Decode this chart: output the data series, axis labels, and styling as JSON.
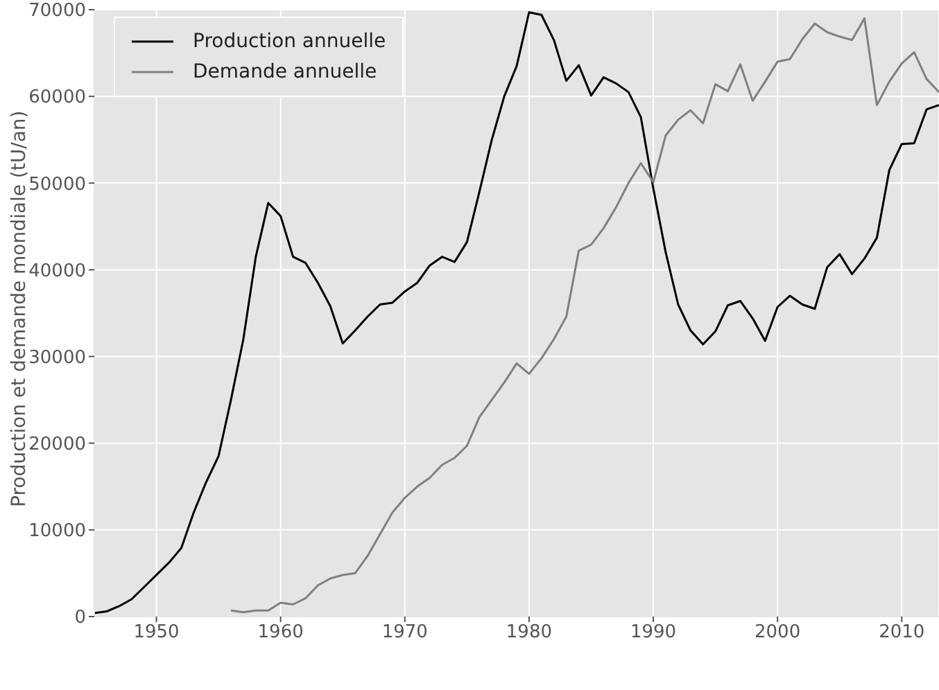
{
  "chart_data": {
    "type": "line",
    "ylabel": "Production et demande mondiale (tU/an)",
    "x": [
      1945,
      1946,
      1947,
      1948,
      1949,
      1950,
      1951,
      1952,
      1953,
      1954,
      1955,
      1956,
      1957,
      1958,
      1959,
      1960,
      1961,
      1962,
      1963,
      1964,
      1965,
      1966,
      1967,
      1968,
      1969,
      1970,
      1971,
      1972,
      1973,
      1974,
      1975,
      1976,
      1977,
      1978,
      1979,
      1980,
      1981,
      1982,
      1983,
      1984,
      1985,
      1986,
      1987,
      1988,
      1989,
      1990,
      1991,
      1992,
      1993,
      1994,
      1995,
      1996,
      1997,
      1998,
      1999,
      2000,
      2001,
      2002,
      2003,
      2004,
      2005,
      2006,
      2007,
      2008,
      2009,
      2010,
      2011,
      2012,
      2013
    ],
    "series": [
      {
        "name": "Production annuelle",
        "color": "#000000",
        "values": [
          400,
          600,
          1200,
          2000,
          3400,
          4800,
          6200,
          7900,
          12000,
          15500,
          18500,
          25000,
          32000,
          41500,
          47700,
          46200,
          41500,
          40800,
          38500,
          35800,
          31500,
          33000,
          34600,
          36000,
          36200,
          37500,
          38500,
          40500,
          41500,
          40900,
          43200,
          49000,
          55000,
          60000,
          63500,
          69700,
          69400,
          66500,
          61800,
          63600,
          60100,
          62200,
          61500,
          60500,
          57600,
          49400,
          42000,
          36000,
          33000,
          31400,
          32900,
          35900,
          36400,
          34400,
          31800,
          35700,
          37000,
          36000,
          35500,
          40300,
          41800,
          39500,
          41300,
          43700,
          51500,
          54500,
          54600,
          58500,
          59000
        ]
      },
      {
        "name": "Demande annuelle",
        "color": "#808080",
        "values": [
          null,
          null,
          null,
          null,
          null,
          null,
          null,
          null,
          null,
          null,
          null,
          700,
          500,
          700,
          700,
          1600,
          1400,
          2100,
          3600,
          4400,
          4800,
          5000,
          7000,
          9500,
          12000,
          13700,
          15000,
          16000,
          17500,
          18300,
          19700,
          23000,
          25000,
          27000,
          29200,
          28000,
          29800,
          32000,
          34600,
          42200,
          42900,
          44800,
          47200,
          50000,
          52300,
          50100,
          55500,
          57300,
          58400,
          56900,
          61400,
          60600,
          63700,
          59500,
          61700,
          64000,
          64300,
          66600,
          68400,
          67400,
          66900,
          66500,
          69000,
          59000,
          61700,
          63800,
          65100,
          62000,
          60500
        ]
      }
    ],
    "xlim": [
      1945,
      2013
    ],
    "xticks": [
      1950,
      1960,
      1970,
      1980,
      1990,
      2000,
      2010
    ],
    "ylim": [
      0,
      70000
    ],
    "yticks": [
      0,
      10000,
      20000,
      30000,
      40000,
      50000,
      60000,
      70000
    ],
    "grid": true,
    "legend": "top left",
    "marker": "none",
    "line_style": "solid"
  }
}
